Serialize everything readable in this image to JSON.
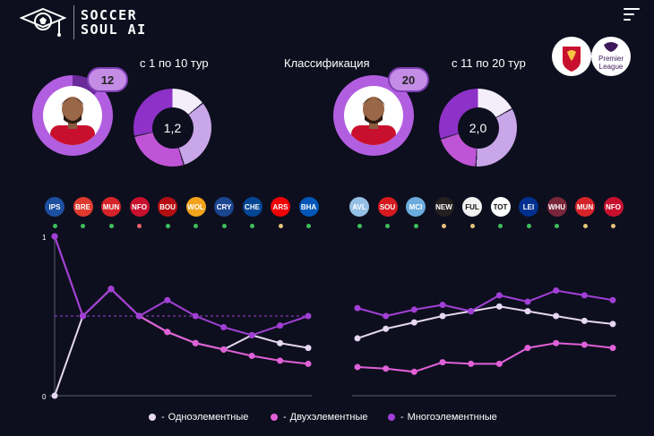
{
  "brand": {
    "line1": "SOCCER",
    "line2": "SOUL AI"
  },
  "header": {
    "left_period": "с 1 по 10 тур",
    "center_title": "Классификация",
    "right_period": "с 11 по 20 тур",
    "club_logo": "liverpool-crest",
    "league_logo": "premier-league",
    "league_label_1": "Premier",
    "league_label_2": "League"
  },
  "left_block": {
    "badge": "12",
    "donut_center": "1,2"
  },
  "right_block": {
    "badge": "20",
    "donut_center": "2,0"
  },
  "opponents_left": [
    {
      "abbr": "IPS",
      "bg": "#1c4fa0",
      "status": "#3fbf5b"
    },
    {
      "abbr": "BRE",
      "bg": "#e03a2f",
      "status": "#3fbf5b"
    },
    {
      "abbr": "MUN",
      "bg": "#d6232a",
      "status": "#3fbf5b"
    },
    {
      "abbr": "NFO",
      "bg": "#c8102e",
      "status": "#e5606b"
    },
    {
      "abbr": "BOU",
      "bg": "#b50e12",
      "status": "#3fbf5b"
    },
    {
      "abbr": "WOL",
      "bg": "#f3a31c",
      "status": "#3fbf5b"
    },
    {
      "abbr": "CRY",
      "bg": "#1b458f",
      "status": "#3fbf5b"
    },
    {
      "abbr": "CHE",
      "bg": "#034694",
      "status": "#3fbf5b"
    },
    {
      "abbr": "ARS",
      "bg": "#ef0107",
      "status": "#e7c27a"
    },
    {
      "abbr": "BHA",
      "bg": "#0057b8",
      "status": "#3fbf5b"
    }
  ],
  "opponents_right": [
    {
      "abbr": "AVL",
      "bg": "#95bfe5",
      "status": "#3fbf5b"
    },
    {
      "abbr": "SOU",
      "bg": "#d71920",
      "status": "#3fbf5b"
    },
    {
      "abbr": "MCI",
      "bg": "#6cabdd",
      "status": "#3fbf5b"
    },
    {
      "abbr": "NEW",
      "bg": "#241f20",
      "status": "#e7c27a"
    },
    {
      "abbr": "FUL",
      "bg": "#f2f2f2",
      "status": "#e7c27a"
    },
    {
      "abbr": "TOT",
      "bg": "#ffffff",
      "status": "#3fbf5b"
    },
    {
      "abbr": "LEI",
      "bg": "#003090",
      "status": "#3fbf5b"
    },
    {
      "abbr": "WHU",
      "bg": "#7a263a",
      "status": "#3fbf5b"
    },
    {
      "abbr": "MUN",
      "bg": "#d6232a",
      "status": "#e7c27a"
    },
    {
      "abbr": "NFO",
      "bg": "#c8102e",
      "status": "#e7c27a"
    }
  ],
  "chart_data": [
    {
      "type": "line",
      "title": "с 1 по 10 тур",
      "x": [
        1,
        2,
        3,
        4,
        5,
        6,
        7,
        8,
        9,
        10
      ],
      "ylim": [
        0,
        1
      ],
      "ytick_labels": [
        "0",
        "1"
      ],
      "reference_line": 0.5,
      "series": [
        {
          "name": "Одноэлементные",
          "color": "#e6d7f2",
          "values": [
            0.0,
            0.5,
            0.67,
            0.5,
            0.4,
            0.33,
            0.29,
            0.38,
            0.33,
            0.3
          ]
        },
        {
          "name": "Двухэлементные",
          "color": "#e060d8",
          "values": [
            1.0,
            0.5,
            0.67,
            0.5,
            0.4,
            0.33,
            0.29,
            0.25,
            0.22,
            0.2
          ]
        },
        {
          "name": "Многоэлементнные",
          "color": "#a23fd6",
          "values": [
            1.0,
            0.5,
            0.67,
            0.5,
            0.6,
            0.5,
            0.43,
            0.38,
            0.44,
            0.5
          ]
        }
      ]
    },
    {
      "type": "line",
      "title": "с 11 по 20 тур",
      "x": [
        11,
        12,
        13,
        14,
        15,
        16,
        17,
        18,
        19,
        20
      ],
      "ylim": [
        0,
        1
      ],
      "series": [
        {
          "name": "Одноэлементные",
          "color": "#e6d7f2",
          "values": [
            0.36,
            0.42,
            0.46,
            0.5,
            0.53,
            0.56,
            0.53,
            0.5,
            0.47,
            0.45
          ]
        },
        {
          "name": "Двухэлементные",
          "color": "#e060d8",
          "values": [
            0.18,
            0.17,
            0.15,
            0.21,
            0.2,
            0.2,
            0.3,
            0.33,
            0.32,
            0.3
          ]
        },
        {
          "name": "Многоэлементнные",
          "color": "#a23fd6",
          "values": [
            0.55,
            0.5,
            0.54,
            0.57,
            0.53,
            0.63,
            0.59,
            0.66,
            0.63,
            0.6
          ]
        }
      ]
    }
  ],
  "legend": [
    "Одноэлементные",
    "Двухэлементные",
    "Многоэлементнные"
  ]
}
